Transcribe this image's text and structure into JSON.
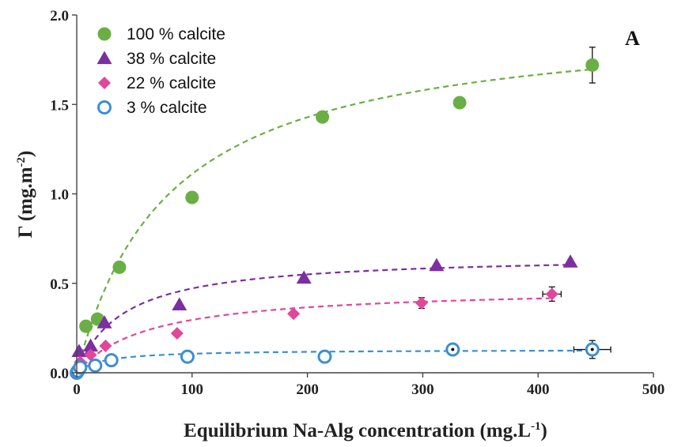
{
  "chart_data": {
    "type": "scatter",
    "panel_label": "A",
    "xlabel": "Equilibrium Na-Alg concentration (mg.L",
    "xlabel_sup": "-1",
    "xlabel_end": ")",
    "ylabel": "Γ (mg.m",
    "ylabel_sup": "-2",
    "ylabel_end": ")",
    "xlim": [
      0,
      500
    ],
    "ylim": [
      0,
      2.0
    ],
    "xticks": [
      "0",
      "100",
      "200",
      "300",
      "400",
      "500"
    ],
    "yticks": [
      "0.0",
      "0.5",
      "1.0",
      "1.5",
      "2.0"
    ],
    "xtick_values": [
      0,
      100,
      200,
      300,
      400,
      500
    ],
    "ytick_values": [
      0,
      0.5,
      1.0,
      1.5,
      2.0
    ],
    "legend_position": "top-left",
    "series": [
      {
        "name": "100 % calcite",
        "marker": "circle",
        "color": "#6aaf45",
        "fit": {
          "model": "langmuir",
          "gmax": 2.0,
          "k": 0.0125,
          "x_range": [
            0,
            450
          ]
        },
        "points": [
          {
            "x": 8,
            "y": 0.26
          },
          {
            "x": 18,
            "y": 0.3
          },
          {
            "x": 37,
            "y": 0.59
          },
          {
            "x": 100,
            "y": 0.98
          },
          {
            "x": 213,
            "y": 1.43
          },
          {
            "x": 332,
            "y": 1.51
          },
          {
            "x": 447,
            "y": 1.72,
            "yerr": 0.1
          }
        ]
      },
      {
        "name": "38 % calcite",
        "marker": "triangle",
        "color": "#7b2fa0",
        "fit": {
          "model": "langmuir",
          "gmax": 0.66,
          "k": 0.025,
          "x_range": [
            0,
            430
          ]
        },
        "points": [
          {
            "x": 2,
            "y": 0.12
          },
          {
            "x": 12,
            "y": 0.15
          },
          {
            "x": 24,
            "y": 0.28
          },
          {
            "x": 89,
            "y": 0.38
          },
          {
            "x": 197,
            "y": 0.53
          },
          {
            "x": 312,
            "y": 0.6
          },
          {
            "x": 428,
            "y": 0.62
          }
        ]
      },
      {
        "name": "22 % calcite",
        "marker": "diamond",
        "color": "#e0479b",
        "fit": {
          "model": "langmuir",
          "gmax": 0.48,
          "k": 0.016,
          "x_range": [
            0,
            410
          ]
        },
        "points": [
          {
            "x": 1,
            "y": 0.03
          },
          {
            "x": 3,
            "y": 0.06
          },
          {
            "x": 12,
            "y": 0.1
          },
          {
            "x": 25,
            "y": 0.15
          },
          {
            "x": 87,
            "y": 0.22
          },
          {
            "x": 188,
            "y": 0.33
          },
          {
            "x": 299,
            "y": 0.39,
            "yerr": 0.03
          },
          {
            "x": 412,
            "y": 0.44,
            "yerr": 0.04,
            "xerr": 8
          }
        ]
      },
      {
        "name": "3 % calcite",
        "marker": "open-circle",
        "color": "#3b8fd1",
        "fit": {
          "model": "langmuir",
          "gmax": 0.13,
          "k": 0.045,
          "x_range": [
            0,
            450
          ]
        },
        "points": [
          {
            "x": 0,
            "y": 0.0
          },
          {
            "x": 1,
            "y": 0.01
          },
          {
            "x": 3,
            "y": 0.03
          },
          {
            "x": 16,
            "y": 0.04
          },
          {
            "x": 30,
            "y": 0.07
          },
          {
            "x": 96,
            "y": 0.09
          },
          {
            "x": 215,
            "y": 0.09
          },
          {
            "x": 326,
            "y": 0.13,
            "xerr": 5
          },
          {
            "x": 447,
            "y": 0.13,
            "yerr": 0.05,
            "xerr": 16
          }
        ]
      }
    ]
  }
}
